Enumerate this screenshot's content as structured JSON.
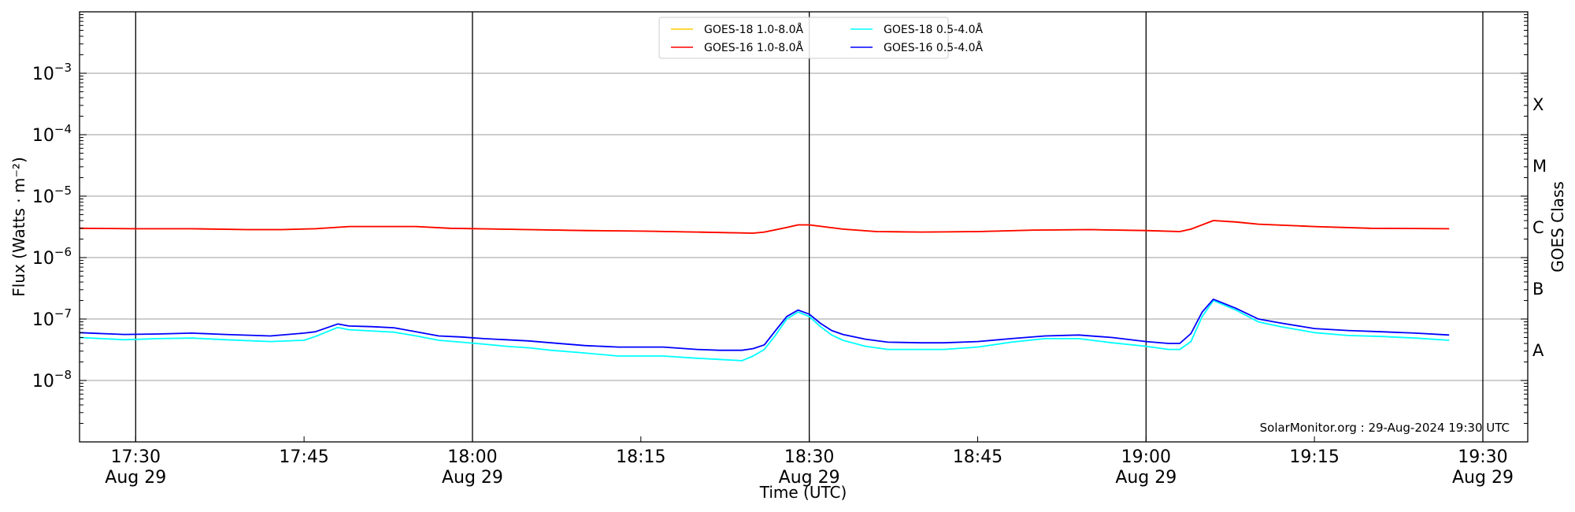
{
  "chart_data": {
    "type": "line",
    "title": "",
    "xlabel": "Time (UTC)",
    "ylabel": "Flux (Watts · m⁻²)",
    "ylabel_right": "GOES Class",
    "yscale": "log",
    "xlim": [
      "17:25",
      "19:34"
    ],
    "ylim": [
      1e-09,
      0.01
    ],
    "grid": "horizontal at each decade",
    "legend_placement": "top-center",
    "annotation": "SolarMonitor.org : 29-Aug-2024 19:30 UTC",
    "x_ticks": [
      {
        "time": "17:30",
        "label": "17:30",
        "date": "Aug 29",
        "major": true
      },
      {
        "time": "17:45",
        "label": "17:45",
        "date": "",
        "major": false
      },
      {
        "time": "18:00",
        "label": "18:00",
        "date": "Aug 29",
        "major": true
      },
      {
        "time": "18:15",
        "label": "18:15",
        "date": "",
        "major": false
      },
      {
        "time": "18:30",
        "label": "18:30",
        "date": "Aug 29",
        "major": true
      },
      {
        "time": "18:45",
        "label": "18:45",
        "date": "",
        "major": false
      },
      {
        "time": "19:00",
        "label": "19:00",
        "date": "Aug 29",
        "major": true
      },
      {
        "time": "19:15",
        "label": "19:15",
        "date": "",
        "major": false
      },
      {
        "time": "19:30",
        "label": "19:30",
        "date": "Aug 29",
        "major": true
      }
    ],
    "y_ticks": [
      {
        "exp": -3,
        "label": "10",
        "sup": "−3"
      },
      {
        "exp": -4,
        "label": "10",
        "sup": "−4"
      },
      {
        "exp": -5,
        "label": "10",
        "sup": "−5"
      },
      {
        "exp": -6,
        "label": "10",
        "sup": "−6"
      },
      {
        "exp": -7,
        "label": "10",
        "sup": "−7"
      },
      {
        "exp": -8,
        "label": "10",
        "sup": "−8"
      }
    ],
    "goes_classes": [
      {
        "label": "X",
        "exp": -3.5
      },
      {
        "label": "M",
        "exp": -4.5
      },
      {
        "label": "C",
        "exp": -5.5
      },
      {
        "label": "B",
        "exp": -6.5
      },
      {
        "label": "A",
        "exp": -7.5
      }
    ],
    "series": [
      {
        "name": "GOES-18 1.0-8.0Å",
        "color": "#ffcc00",
        "x": [
          "17:25",
          "17:30",
          "17:35",
          "17:40",
          "17:43",
          "17:46",
          "17:49",
          "17:55",
          "17:58",
          "18:05",
          "18:10",
          "18:15",
          "18:20",
          "18:25",
          "18:26",
          "18:28",
          "18:29",
          "18:30",
          "18:33",
          "18:36",
          "18:40",
          "18:45",
          "18:50",
          "18:55",
          "19:00",
          "19:03",
          "19:04",
          "19:06",
          "19:08",
          "19:10",
          "19:15",
          "19:20",
          "19:27"
        ],
        "y": [
          3e-06,
          2.95e-06,
          2.95e-06,
          2.85e-06,
          2.85e-06,
          2.95e-06,
          3.2e-06,
          3.2e-06,
          3e-06,
          2.85e-06,
          2.75e-06,
          2.7e-06,
          2.6e-06,
          2.5e-06,
          2.6e-06,
          3.1e-06,
          3.4e-06,
          3.4e-06,
          2.9e-06,
          2.65e-06,
          2.6e-06,
          2.65e-06,
          2.8e-06,
          2.85e-06,
          2.75e-06,
          2.65e-06,
          2.9e-06,
          4e-06,
          3.8e-06,
          3.5e-06,
          3.2e-06,
          3e-06,
          2.95e-06
        ]
      },
      {
        "name": "GOES-16 1.0-8.0Å",
        "color": "#ff0000",
        "x": [
          "17:25",
          "17:30",
          "17:35",
          "17:40",
          "17:43",
          "17:46",
          "17:49",
          "17:55",
          "17:58",
          "18:05",
          "18:10",
          "18:15",
          "18:20",
          "18:25",
          "18:26",
          "18:28",
          "18:29",
          "18:30",
          "18:33",
          "18:36",
          "18:40",
          "18:45",
          "18:50",
          "18:55",
          "19:00",
          "19:03",
          "19:04",
          "19:06",
          "19:08",
          "19:10",
          "19:15",
          "19:20",
          "19:27"
        ],
        "y": [
          3e-06,
          2.95e-06,
          2.95e-06,
          2.85e-06,
          2.85e-06,
          2.95e-06,
          3.2e-06,
          3.2e-06,
          3e-06,
          2.85e-06,
          2.75e-06,
          2.7e-06,
          2.6e-06,
          2.5e-06,
          2.6e-06,
          3.1e-06,
          3.4e-06,
          3.4e-06,
          2.9e-06,
          2.65e-06,
          2.6e-06,
          2.65e-06,
          2.8e-06,
          2.85e-06,
          2.75e-06,
          2.65e-06,
          2.9e-06,
          4e-06,
          3.8e-06,
          3.5e-06,
          3.2e-06,
          3e-06,
          2.95e-06
        ]
      },
      {
        "name": "GOES-18 0.5-4.0Å",
        "color": "#00ffff",
        "x": [
          "17:25",
          "17:27",
          "17:29",
          "17:32",
          "17:35",
          "17:38",
          "17:42",
          "17:45",
          "17:46",
          "17:48",
          "17:49",
          "17:51",
          "17:53",
          "17:55",
          "17:57",
          "17:59",
          "18:01",
          "18:03",
          "18:05",
          "18:07",
          "18:10",
          "18:13",
          "18:15",
          "18:17",
          "18:20",
          "18:22",
          "18:24",
          "18:25",
          "18:26",
          "18:27",
          "18:28",
          "18:29",
          "18:30",
          "18:31",
          "18:32",
          "18:33",
          "18:35",
          "18:37",
          "18:40",
          "18:42",
          "18:45",
          "18:48",
          "18:51",
          "18:54",
          "18:57",
          "19:00",
          "19:02",
          "19:03",
          "19:04",
          "19:05",
          "19:06",
          "19:08",
          "19:10",
          "19:12",
          "19:15",
          "19:18",
          "19:21",
          "19:24",
          "19:27"
        ],
        "y": [
          5e-08,
          4.8e-08,
          4.6e-08,
          4.8e-08,
          4.9e-08,
          4.6e-08,
          4.3e-08,
          4.5e-08,
          5.2e-08,
          7.3e-08,
          6.7e-08,
          6.4e-08,
          6.1e-08,
          5.3e-08,
          4.5e-08,
          4.2e-08,
          3.9e-08,
          3.6e-08,
          3.4e-08,
          3.1e-08,
          2.8e-08,
          2.5e-08,
          2.5e-08,
          2.5e-08,
          2.3e-08,
          2.2e-08,
          2.1e-08,
          2.5e-08,
          3.2e-08,
          5.5e-08,
          1e-07,
          1.3e-07,
          1.1e-07,
          7.5e-08,
          5.5e-08,
          4.5e-08,
          3.6e-08,
          3.2e-08,
          3.2e-08,
          3.2e-08,
          3.5e-08,
          4.2e-08,
          4.8e-08,
          4.8e-08,
          4.1e-08,
          3.6e-08,
          3.2e-08,
          3.2e-08,
          4.3e-08,
          1.1e-07,
          2e-07,
          1.4e-07,
          9e-08,
          7.5e-08,
          6e-08,
          5.4e-08,
          5.2e-08,
          4.9e-08,
          4.5e-08
        ]
      },
      {
        "name": "GOES-16 0.5-4.0Å",
        "color": "#0000ff",
        "x": [
          "17:25",
          "17:27",
          "17:29",
          "17:32",
          "17:35",
          "17:38",
          "17:42",
          "17:45",
          "17:46",
          "17:48",
          "17:49",
          "17:51",
          "17:53",
          "17:55",
          "17:57",
          "17:59",
          "18:01",
          "18:03",
          "18:05",
          "18:07",
          "18:10",
          "18:13",
          "18:15",
          "18:17",
          "18:20",
          "18:22",
          "18:24",
          "18:25",
          "18:26",
          "18:27",
          "18:28",
          "18:29",
          "18:30",
          "18:31",
          "18:32",
          "18:33",
          "18:35",
          "18:37",
          "18:40",
          "18:42",
          "18:45",
          "18:48",
          "18:51",
          "18:54",
          "18:57",
          "19:00",
          "19:02",
          "19:03",
          "19:04",
          "19:05",
          "19:06",
          "19:08",
          "19:10",
          "19:12",
          "19:15",
          "19:18",
          "19:21",
          "19:24",
          "19:27"
        ],
        "y": [
          6e-08,
          5.8e-08,
          5.6e-08,
          5.7e-08,
          5.9e-08,
          5.6e-08,
          5.3e-08,
          5.9e-08,
          6.2e-08,
          8.3e-08,
          7.7e-08,
          7.5e-08,
          7.2e-08,
          6.2e-08,
          5.3e-08,
          5.1e-08,
          4.8e-08,
          4.6e-08,
          4.4e-08,
          4.1e-08,
          3.7e-08,
          3.5e-08,
          3.5e-08,
          3.5e-08,
          3.2e-08,
          3.1e-08,
          3.1e-08,
          3.3e-08,
          3.8e-08,
          6.5e-08,
          1.1e-07,
          1.4e-07,
          1.2e-07,
          8.5e-08,
          6.5e-08,
          5.6e-08,
          4.7e-08,
          4.2e-08,
          4.1e-08,
          4.1e-08,
          4.3e-08,
          4.8e-08,
          5.3e-08,
          5.5e-08,
          5e-08,
          4.3e-08,
          4e-08,
          4e-08,
          5.8e-08,
          1.3e-07,
          2.1e-07,
          1.5e-07,
          1e-07,
          8.6e-08,
          7e-08,
          6.5e-08,
          6.2e-08,
          5.9e-08,
          5.5e-08
        ]
      }
    ]
  }
}
